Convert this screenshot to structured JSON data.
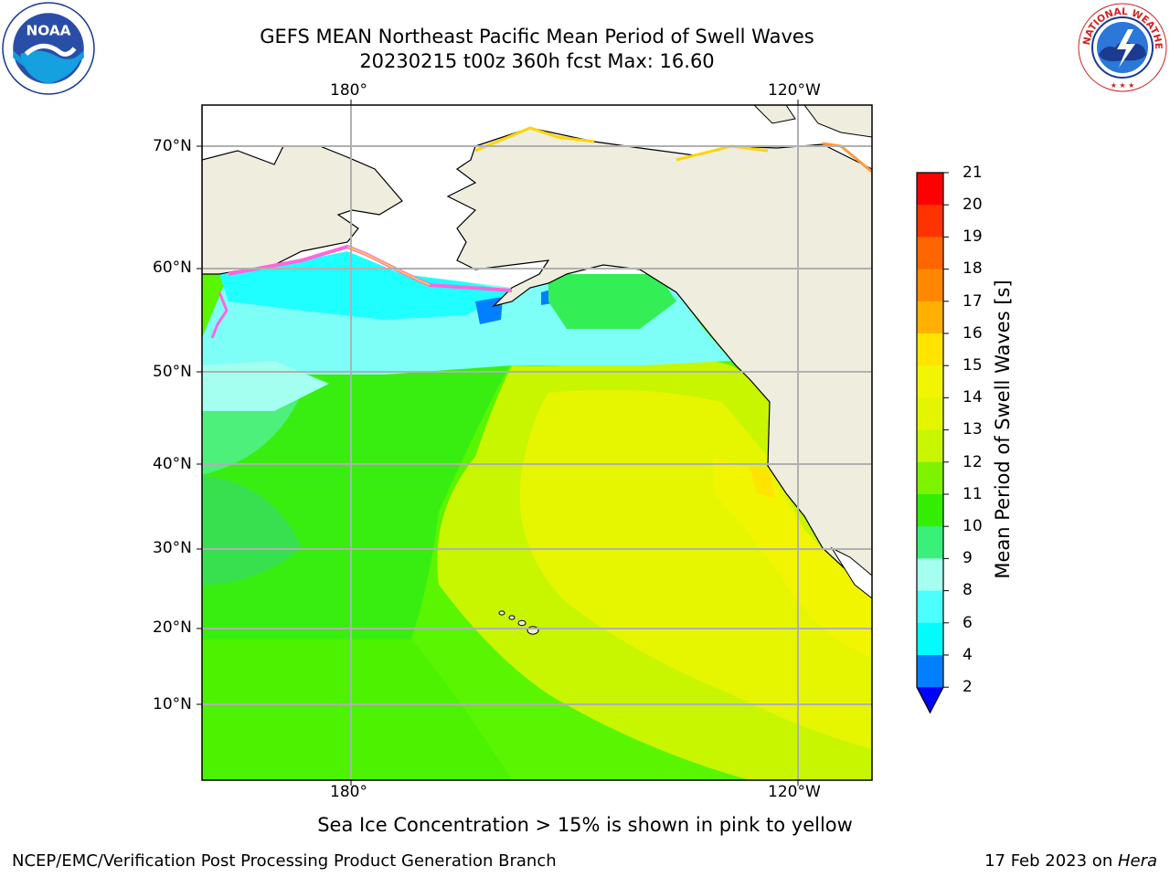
{
  "title": {
    "line1": "GEFS MEAN Northeast Pacific Mean Period of Swell Waves",
    "line2": "20230215 t00z 360h fcst   Max: 16.60"
  },
  "logos": {
    "left": "NOAA",
    "right": "NATIONAL WEATHER SERVICE"
  },
  "map": {
    "lon_ticks_top": [
      "180°",
      "120°W"
    ],
    "lon_ticks_bottom": [
      "180°",
      "120°W"
    ],
    "lat_ticks": [
      "70°N",
      "60°N",
      "50°N",
      "40°N",
      "30°N",
      "20°N",
      "10°N"
    ],
    "colors": {
      "land": "#efedde",
      "ice_free_white": "#ffffff",
      "grid": "#b0b0b0"
    }
  },
  "colorbar": {
    "label": "Mean Period of Swell Waves [s]",
    "ticks": [
      "21",
      "20",
      "19",
      "18",
      "17",
      "16",
      "15",
      "14",
      "13",
      "12",
      "11",
      "10",
      "9",
      "8",
      "6",
      "4",
      "2"
    ],
    "colors": [
      "#ff0000",
      "#ff3300",
      "#ff6600",
      "#ff8800",
      "#ffb000",
      "#ffe400",
      "#f2f500",
      "#e4f500",
      "#c8f500",
      "#7df300",
      "#33ee00",
      "#38f07a",
      "#a4fff0",
      "#4dfffc",
      "#00fcfc",
      "#0080ff"
    ],
    "extend_color": "#0000ff"
  },
  "note": "Sea Ice Concentration > 15% is shown in pink to yellow",
  "footer": {
    "left": "NCEP/EMC/Verification Post Processing Product Generation Branch",
    "right_date": "17 Feb 2023 on ",
    "right_machine": "Hera"
  }
}
